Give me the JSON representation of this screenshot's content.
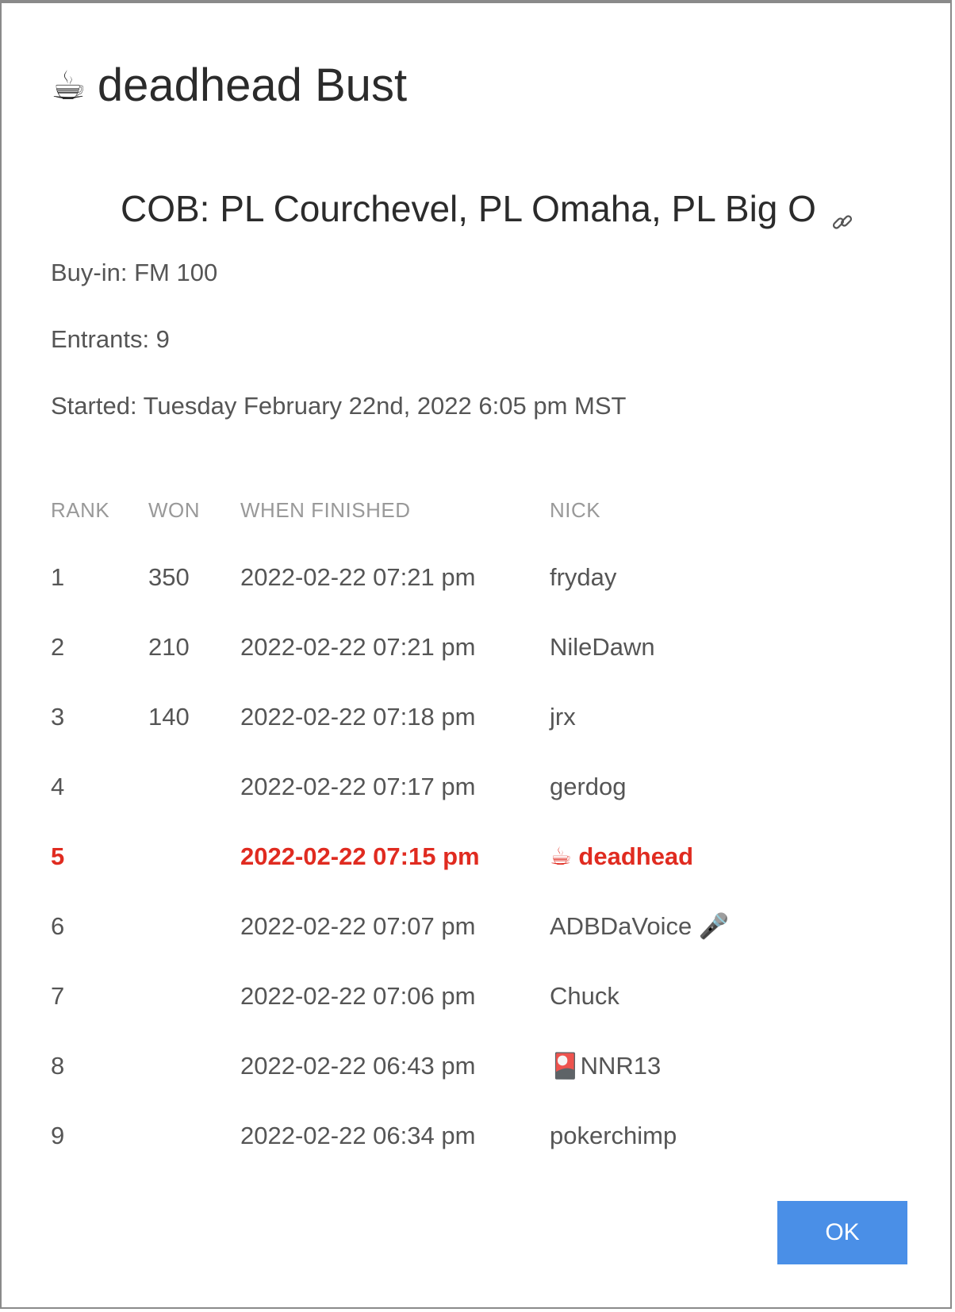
{
  "dialog": {
    "title_icon": "☕",
    "title_text": "deadhead Bust",
    "tournament_name": "COB: PL Courchevel, PL Omaha, PL Big O",
    "link_icon": "link-icon",
    "buy_in": "Buy-in: FM 100",
    "entrants": "Entrants: 9",
    "started": "Started: Tuesday February 22nd, 2022 6:05 pm MST",
    "ok_label": "OK"
  },
  "table": {
    "headers": {
      "rank": "RANK",
      "won": "WON",
      "when": "WHEN FINISHED",
      "nick": "NICK"
    },
    "rows": [
      {
        "rank": "1",
        "won": "350",
        "when": "2022-02-22 07:21 pm",
        "nick": "fryday"
      },
      {
        "rank": "2",
        "won": "210",
        "when": "2022-02-22 07:21 pm",
        "nick": "NileDawn"
      },
      {
        "rank": "3",
        "won": "140",
        "when": "2022-02-22 07:18 pm",
        "nick": "jrx"
      },
      {
        "rank": "4",
        "won": "",
        "when": "2022-02-22 07:17 pm",
        "nick": "gerdog"
      },
      {
        "rank": "5",
        "won": "",
        "when": "2022-02-22 07:15 pm",
        "nick": "☕ deadhead"
      },
      {
        "rank": "6",
        "won": "",
        "when": "2022-02-22 07:07 pm",
        "nick": "ADBDaVoice 🎤"
      },
      {
        "rank": "7",
        "won": "",
        "when": "2022-02-22 07:06 pm",
        "nick": "Chuck"
      },
      {
        "rank": "8",
        "won": "",
        "when": "2022-02-22 06:43 pm",
        "nick": "🎴NNR13"
      },
      {
        "rank": "9",
        "won": "",
        "when": "2022-02-22 06:34 pm",
        "nick": "pokerchimp"
      }
    ],
    "highlight_rank": "5"
  },
  "colors": {
    "highlight": "#e02b20",
    "button": "#4a8fe7",
    "text": "#555555",
    "header": "#999999"
  }
}
